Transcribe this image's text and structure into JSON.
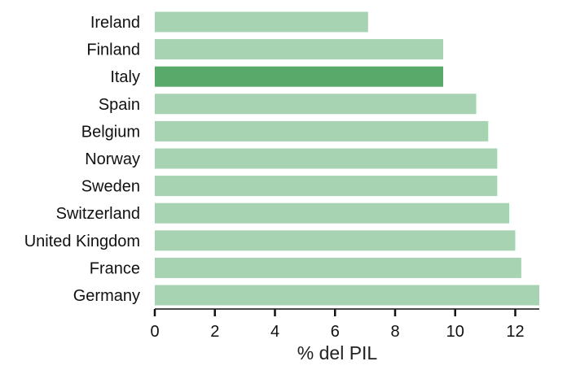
{
  "chart_data": {
    "type": "bar",
    "orientation": "horizontal",
    "title": "",
    "xlabel": "% del PIL",
    "ylabel": "",
    "categories": [
      "Ireland",
      "Finland",
      "Italy",
      "Spain",
      "Belgium",
      "Norway",
      "Sweden",
      "Switzerland",
      "United Kingdom",
      "France",
      "Germany"
    ],
    "values": [
      7.1,
      9.6,
      9.6,
      10.7,
      11.1,
      11.4,
      11.4,
      11.8,
      12.0,
      12.2,
      12.8
    ],
    "highlight": "Italy",
    "xlim": [
      0,
      12.8
    ],
    "xticks": [
      0,
      2,
      4,
      6,
      8,
      10,
      12
    ],
    "grid": false,
    "legend": "none",
    "colors": {
      "bar": "#a8d3b3",
      "highlight": "#59a96a",
      "text": "#111111",
      "axis": "#111111"
    }
  }
}
